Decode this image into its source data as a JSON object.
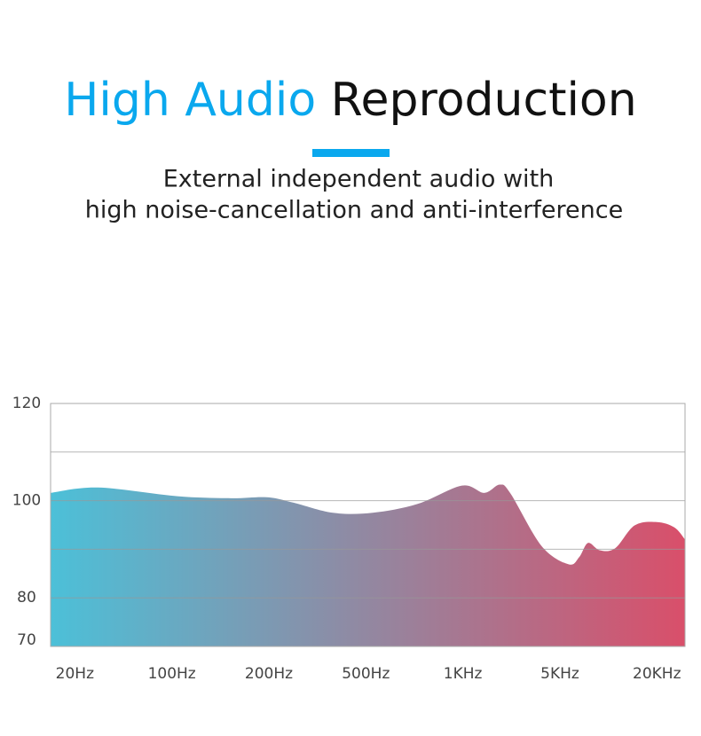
{
  "chart_data": {
    "type": "area",
    "title_parts": [
      {
        "text": "High Audio",
        "color": "#0aa8ee"
      },
      {
        "text": "Reproduction",
        "color": "#111111"
      }
    ],
    "subtitle_lines": [
      "External independent audio with",
      "high noise-cancellation and anti-interference"
    ],
    "x": [
      -0.25,
      0.24,
      1.06,
      1.61,
      1.98,
      2.25,
      2.66,
      3.07,
      3.53,
      3.99,
      4.22,
      4.38,
      4.49,
      4.81,
      5.09,
      5.2,
      5.29,
      5.41,
      5.57,
      5.77,
      6.0,
      6.18,
      6.29
    ],
    "values": [
      101.6,
      102.7,
      100.9,
      100.5,
      100.7,
      99.6,
      97.5,
      97.5,
      99.3,
      103.1,
      101.6,
      103.3,
      101.5,
      90.7,
      86.9,
      88.4,
      91.3,
      89.8,
      90.2,
      94.9,
      95.6,
      94.5,
      92.0
    ],
    "xlim": [
      -0.25,
      6.29
    ],
    "xticks": [
      {
        "value": 0,
        "label": "20Hz"
      },
      {
        "value": 1,
        "label": "100Hz"
      },
      {
        "value": 2,
        "label": "200Hz"
      },
      {
        "value": 3,
        "label": "500Hz"
      },
      {
        "value": 4,
        "label": "1KHz"
      },
      {
        "value": 5,
        "label": "5KHz"
      },
      {
        "value": 6,
        "label": "20KHz"
      }
    ],
    "ylim": [
      70,
      120
    ],
    "yticks": [
      70,
      80,
      100,
      120
    ],
    "ygrid": [
      80,
      90,
      100,
      110
    ],
    "colors": [
      "#4cc0d8",
      "#d94f6a"
    ]
  }
}
